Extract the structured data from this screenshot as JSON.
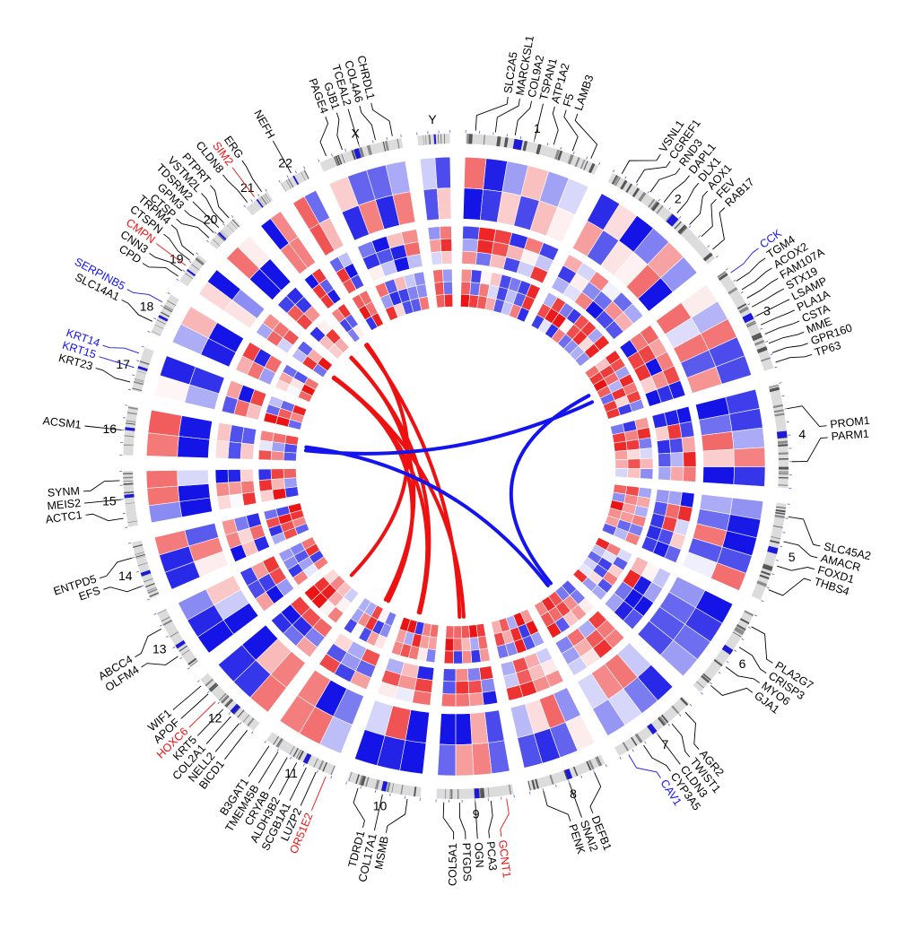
{
  "colors": {
    "blue": "#1414ee",
    "red": "#ee1111",
    "ideogram_fill": "#dcdcdc",
    "band_dark": "#555555",
    "centromere": "#1a1ad8",
    "label_black": "#000000"
  },
  "chromosomes": [
    {
      "name": "1",
      "size": 249
    },
    {
      "name": "2",
      "size": 243
    },
    {
      "name": "3",
      "size": 198
    },
    {
      "name": "4",
      "size": 191
    },
    {
      "name": "5",
      "size": 181
    },
    {
      "name": "6",
      "size": 171
    },
    {
      "name": "7",
      "size": 159
    },
    {
      "name": "8",
      "size": 146
    },
    {
      "name": "9",
      "size": 141
    },
    {
      "name": "10",
      "size": 136
    },
    {
      "name": "11",
      "size": 135
    },
    {
      "name": "12",
      "size": 134
    },
    {
      "name": "13",
      "size": 115
    },
    {
      "name": "14",
      "size": 107
    },
    {
      "name": "15",
      "size": 102
    },
    {
      "name": "16",
      "size": 90
    },
    {
      "name": "17",
      "size": 81
    },
    {
      "name": "18",
      "size": 78
    },
    {
      "name": "19",
      "size": 59
    },
    {
      "name": "20",
      "size": 63
    },
    {
      "name": "21",
      "size": 48
    },
    {
      "name": "22",
      "size": 51
    },
    {
      "name": "X",
      "size": 155
    },
    {
      "name": "Y",
      "size": 59
    }
  ],
  "genes": [
    {
      "name": "SLC2A5",
      "chr": "1",
      "color": "black"
    },
    {
      "name": "MARCKSL1",
      "chr": "1",
      "color": "black"
    },
    {
      "name": "COL9A2",
      "chr": "1",
      "color": "black"
    },
    {
      "name": "TSPAN1",
      "chr": "1",
      "color": "black"
    },
    {
      "name": "ATP1A2",
      "chr": "1",
      "color": "black"
    },
    {
      "name": "F5",
      "chr": "1",
      "color": "black"
    },
    {
      "name": "LAMB3",
      "chr": "1",
      "color": "black"
    },
    {
      "name": "VSNL1",
      "chr": "2",
      "color": "black"
    },
    {
      "name": "CGREF1",
      "chr": "2",
      "color": "black"
    },
    {
      "name": "RND3",
      "chr": "2",
      "color": "black"
    },
    {
      "name": "DAPL1",
      "chr": "2",
      "color": "black"
    },
    {
      "name": "DLX1",
      "chr": "2",
      "color": "black"
    },
    {
      "name": "AOX1",
      "chr": "2",
      "color": "black"
    },
    {
      "name": "FEV",
      "chr": "2",
      "color": "black"
    },
    {
      "name": "RAB17",
      "chr": "2",
      "color": "black"
    },
    {
      "name": "CCK",
      "chr": "3",
      "color": "blue"
    },
    {
      "name": "TGM4",
      "chr": "3",
      "color": "black"
    },
    {
      "name": "ACOX2",
      "chr": "3",
      "color": "black"
    },
    {
      "name": "FAM107A",
      "chr": "3",
      "color": "black"
    },
    {
      "name": "STX19",
      "chr": "3",
      "color": "black"
    },
    {
      "name": "LSAMP",
      "chr": "3",
      "color": "black"
    },
    {
      "name": "PLA1A",
      "chr": "3",
      "color": "black"
    },
    {
      "name": "CSTA",
      "chr": "3",
      "color": "black"
    },
    {
      "name": "MME",
      "chr": "3",
      "color": "black"
    },
    {
      "name": "GPR160",
      "chr": "3",
      "color": "black"
    },
    {
      "name": "TP63",
      "chr": "3",
      "color": "black"
    },
    {
      "name": "PROM1",
      "chr": "4",
      "color": "black"
    },
    {
      "name": "PARM1",
      "chr": "4",
      "color": "black"
    },
    {
      "name": "SLC45A2",
      "chr": "5",
      "color": "black"
    },
    {
      "name": "AMACR",
      "chr": "5",
      "color": "black"
    },
    {
      "name": "FOXD1",
      "chr": "5",
      "color": "black"
    },
    {
      "name": "THBS4",
      "chr": "5",
      "color": "black"
    },
    {
      "name": "PLA2G7",
      "chr": "6",
      "color": "black"
    },
    {
      "name": "CRISP3",
      "chr": "6",
      "color": "black"
    },
    {
      "name": "MYO6",
      "chr": "6",
      "color": "black"
    },
    {
      "name": "GJA1",
      "chr": "6",
      "color": "black"
    },
    {
      "name": "AGR2",
      "chr": "7",
      "color": "black"
    },
    {
      "name": "TWIST1",
      "chr": "7",
      "color": "black"
    },
    {
      "name": "CLDN3",
      "chr": "7",
      "color": "black"
    },
    {
      "name": "CYP3A5",
      "chr": "7",
      "color": "black"
    },
    {
      "name": "CAV1",
      "chr": "7",
      "color": "blue"
    },
    {
      "name": "DEFB1",
      "chr": "8",
      "color": "black"
    },
    {
      "name": "SNAI2",
      "chr": "8",
      "color": "black"
    },
    {
      "name": "PENK",
      "chr": "8",
      "color": "black"
    },
    {
      "name": "GCNT1",
      "chr": "9",
      "color": "red"
    },
    {
      "name": "PCA3",
      "chr": "9",
      "color": "black"
    },
    {
      "name": "OGN",
      "chr": "9",
      "color": "black"
    },
    {
      "name": "PTGDS",
      "chr": "9",
      "color": "black"
    },
    {
      "name": "COL5A1",
      "chr": "9",
      "color": "black"
    },
    {
      "name": "MSMB",
      "chr": "10",
      "color": "black"
    },
    {
      "name": "COL17A1",
      "chr": "10",
      "color": "black"
    },
    {
      "name": "TDRD1",
      "chr": "10",
      "color": "black"
    },
    {
      "name": "OR51E2",
      "chr": "11",
      "color": "red"
    },
    {
      "name": "LUZP2",
      "chr": "11",
      "color": "black"
    },
    {
      "name": "SCGB1A1",
      "chr": "11",
      "color": "black"
    },
    {
      "name": "ALDH3B2",
      "chr": "11",
      "color": "black"
    },
    {
      "name": "CRYAB",
      "chr": "11",
      "color": "black"
    },
    {
      "name": "TMEM45B",
      "chr": "11",
      "color": "black"
    },
    {
      "name": "B3GAT1",
      "chr": "11",
      "color": "black"
    },
    {
      "name": "BICD1",
      "chr": "12",
      "color": "black"
    },
    {
      "name": "NELL2",
      "chr": "12",
      "color": "black"
    },
    {
      "name": "COL2A1",
      "chr": "12",
      "color": "black"
    },
    {
      "name": "KRT5",
      "chr": "12",
      "color": "black"
    },
    {
      "name": "HOXC6",
      "chr": "12",
      "color": "red"
    },
    {
      "name": "APOF",
      "chr": "12",
      "color": "black"
    },
    {
      "name": "WIF1",
      "chr": "12",
      "color": "black"
    },
    {
      "name": "OLFM4",
      "chr": "13",
      "color": "black"
    },
    {
      "name": "ABCC4",
      "chr": "13",
      "color": "black"
    },
    {
      "name": "EFS",
      "chr": "14",
      "color": "black"
    },
    {
      "name": "ENTPD5",
      "chr": "14",
      "color": "black"
    },
    {
      "name": "ACTC1",
      "chr": "15",
      "color": "black"
    },
    {
      "name": "MEIS2",
      "chr": "15",
      "color": "black"
    },
    {
      "name": "SYNM",
      "chr": "15",
      "color": "black"
    },
    {
      "name": "ACSM1",
      "chr": "16",
      "color": "black"
    },
    {
      "name": "KRT23",
      "chr": "17",
      "color": "black"
    },
    {
      "name": "KRT15",
      "chr": "17",
      "color": "blue"
    },
    {
      "name": "KRT14",
      "chr": "17",
      "color": "blue"
    },
    {
      "name": "SLC14A1",
      "chr": "18",
      "color": "black"
    },
    {
      "name": "SERPINB5",
      "chr": "18",
      "color": "blue"
    },
    {
      "name": "CPD",
      "chr": "19",
      "color": "black"
    },
    {
      "name": "CNN3",
      "chr": "19",
      "color": "black"
    },
    {
      "name": "CMPN",
      "chr": "19",
      "color": "red"
    },
    {
      "name": "CTSPN",
      "chr": "19",
      "color": "black"
    },
    {
      "name": "TRPM4",
      "chr": "19",
      "color": "black"
    },
    {
      "name": "CTSP",
      "chr": "20",
      "color": "black"
    },
    {
      "name": "GPM3",
      "chr": "20",
      "color": "black"
    },
    {
      "name": "TDSRM2",
      "chr": "20",
      "color": "black"
    },
    {
      "name": "VSTM2L",
      "chr": "20",
      "color": "black"
    },
    {
      "name": "PTPRT",
      "chr": "20",
      "color": "black"
    },
    {
      "name": "CLDN8",
      "chr": "21",
      "color": "black"
    },
    {
      "name": "SIM2",
      "chr": "21",
      "color": "red"
    },
    {
      "name": "ERG",
      "chr": "21",
      "color": "black"
    },
    {
      "name": "NEFH",
      "chr": "22",
      "color": "black"
    },
    {
      "name": "PAGE4",
      "chr": "X",
      "color": "black"
    },
    {
      "name": "GJB1",
      "chr": "X",
      "color": "black"
    },
    {
      "name": "TCEAL2",
      "chr": "X",
      "color": "black"
    },
    {
      "name": "COL4A6",
      "chr": "X",
      "color": "black"
    },
    {
      "name": "CHRDL1",
      "chr": "X",
      "color": "black"
    }
  ],
  "links": [
    {
      "from": "19",
      "to": "9",
      "color": "red"
    },
    {
      "from": "19",
      "to": "11",
      "color": "red"
    },
    {
      "from": "20",
      "to": "10",
      "color": "red"
    },
    {
      "from": "21",
      "to": "12",
      "color": "red"
    },
    {
      "from": "21",
      "to": "9",
      "color": "red"
    },
    {
      "from": "20",
      "to": "11",
      "color": "red"
    },
    {
      "from": "19",
      "to": "10",
      "color": "red"
    },
    {
      "from": "3",
      "to": "16",
      "color": "blue"
    },
    {
      "from": "3",
      "to": "7",
      "color": "blue"
    },
    {
      "from": "16",
      "to": "7",
      "color": "blue"
    }
  ]
}
